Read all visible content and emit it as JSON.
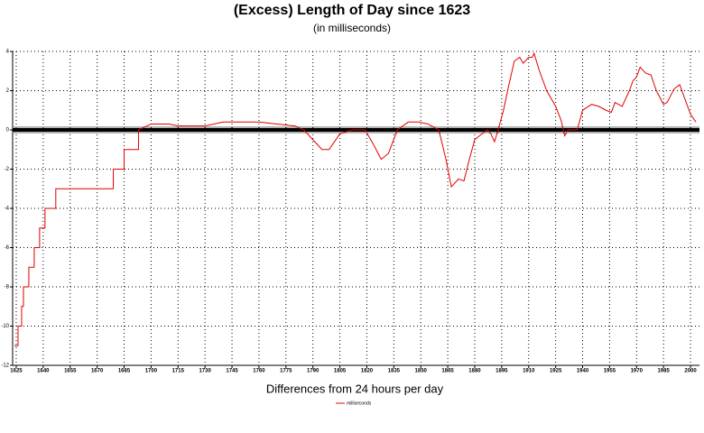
{
  "chart_data": {
    "type": "line",
    "title": "(Excess) Length of Day since 1623",
    "subtitle": "(in milliseconds)",
    "x_label": "Differences from 24 hours per day",
    "x": [
      1624,
      1626,
      1626,
      1628,
      1628,
      1629,
      1629,
      1632,
      1632,
      1635,
      1635,
      1638,
      1638,
      1641,
      1641,
      1647,
      1647,
      1679,
      1679,
      1685,
      1685,
      1693,
      1693,
      1700,
      1710,
      1715,
      1720,
      1730,
      1740,
      1760,
      1770,
      1780,
      1785,
      1790,
      1795,
      1799,
      1805,
      1812,
      1819,
      1824,
      1828,
      1832,
      1837,
      1843,
      1849,
      1854,
      1860,
      1864,
      1867,
      1871,
      1874,
      1877,
      1880,
      1884,
      1887,
      1889,
      1891,
      1893,
      1896,
      1899,
      1902,
      1905,
      1907,
      1910,
      1912,
      1913,
      1916,
      1920,
      1925,
      1928,
      1930,
      1932,
      1937,
      1940,
      1945,
      1949,
      1953,
      1956,
      1958,
      1962,
      1966,
      1968,
      1970,
      1972,
      1975,
      1978,
      1981,
      1985,
      1987,
      1991,
      1994,
      1996,
      2000,
      2003
    ],
    "series": [
      {
        "name": "milliseconds",
        "color": "#e00000",
        "values": [
          -11,
          -11,
          -10,
          -10,
          -9,
          -9,
          -8,
          -8,
          -7,
          -7,
          -6,
          -6,
          -5,
          -5,
          -4,
          -4,
          -3,
          -3,
          -2,
          -2,
          -1,
          -1,
          0,
          0.3,
          0.3,
          0.2,
          0.2,
          0.2,
          0.4,
          0.4,
          0.3,
          0.2,
          0,
          -0.5,
          -1,
          -1,
          -0.2,
          0,
          0,
          -0.8,
          -1.5,
          -1.2,
          0,
          0.4,
          0.4,
          0.3,
          0,
          -1.5,
          -2.9,
          -2.5,
          -2.6,
          -1.5,
          -0.5,
          -0.2,
          0,
          -0.2,
          -0.6,
          0,
          1,
          2.3,
          3.5,
          3.7,
          3.4,
          3.7,
          3.7,
          3.9,
          3.0,
          2.0,
          1.2,
          0.5,
          -0.3,
          0,
          0,
          1,
          1.3,
          1.2,
          1.0,
          0.9,
          1.4,
          1.2,
          2.0,
          2.5,
          2.7,
          3.2,
          2.9,
          2.8,
          2.0,
          1.3,
          1.4,
          2.1,
          2.3,
          1.8,
          0.8,
          0.4
        ]
      }
    ],
    "xlim": [
      1623,
      2005
    ],
    "xticks": [
      1625,
      1640,
      1655,
      1670,
      1685,
      1700,
      1715,
      1730,
      1745,
      1760,
      1775,
      1790,
      1805,
      1820,
      1835,
      1850,
      1865,
      1880,
      1895,
      1910,
      1925,
      1940,
      1955,
      1970,
      1985,
      2000
    ],
    "ylim": [
      -12,
      4
    ],
    "yticks": [
      4,
      2,
      0,
      -2,
      -4,
      -6,
      -8,
      -10,
      -12
    ],
    "grid": true
  }
}
